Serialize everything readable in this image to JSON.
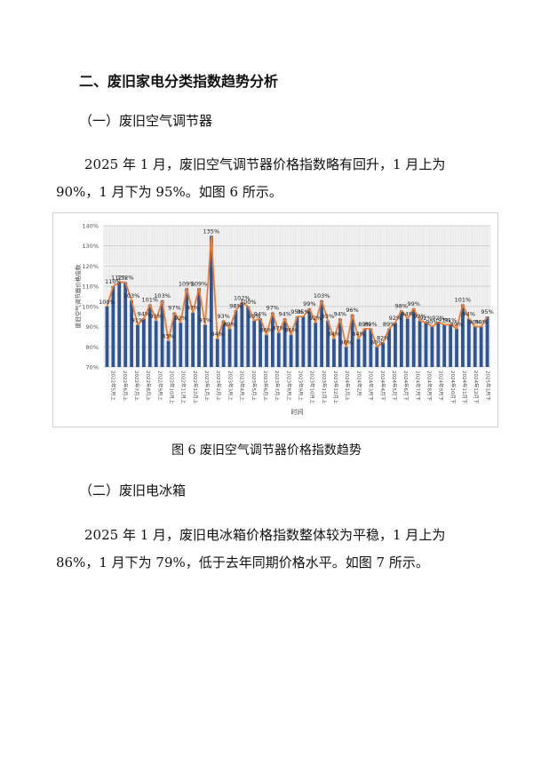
{
  "section_title": "二、废旧家电分类指数趋势分析",
  "subsection1_title": "（一）废旧空气调节器",
  "paragraph1": {
    "line1": "2025 年 1 月，废旧空气调节器价格指数略有回升，1 月上为",
    "line2": "90%，1 月下为 95%。如图 6 所示。"
  },
  "figure_caption": "图 6  废旧空气调节器价格指数趋势",
  "subsection2_title": "（二）废旧电冰箱",
  "paragraph2": {
    "line1": "2025 年 1 月，废旧电冰箱价格指数整体较为平稳，1 月上为",
    "line2": "86%，1 月下为 79%，低于去年同期价格水平。如图 7 所示。"
  },
  "chart_data": {
    "type": "bar",
    "ylabel": "废旧空气调节器价格指数",
    "xlabel": "时间",
    "ylim": [
      70,
      140
    ],
    "yticks": [
      "70%",
      "80%",
      "90%",
      "100%",
      "110%",
      "120%",
      "130%",
      "140%"
    ],
    "grid": true,
    "bar_color": "#2f5597",
    "line_color": "#ed7d31",
    "values": [
      100,
      110,
      112,
      112,
      103,
      91,
      94,
      101,
      93,
      103,
      83,
      97,
      92,
      109,
      97,
      109,
      91,
      135,
      84,
      93,
      89,
      98,
      102,
      100,
      93,
      94,
      86,
      97,
      87,
      94,
      86,
      95,
      95,
      99,
      92,
      103,
      93,
      84,
      94,
      80,
      96,
      84,
      89,
      89,
      80,
      82,
      89,
      92,
      98,
      94,
      99,
      93,
      92,
      90,
      92,
      91,
      91,
      89,
      101,
      94,
      90,
      90,
      95
    ],
    "labels": [
      "100%",
      "110%",
      "112%",
      "112%",
      "103%",
      "91%",
      "94%",
      "101%",
      "93%",
      "103%",
      "83%",
      "97%",
      "92%",
      "109%",
      "97%",
      "109%",
      "91%",
      "135%",
      "84%",
      "93%",
      "89%",
      "98%",
      "102%",
      "100%",
      "93%",
      "94%",
      "86%",
      "97%",
      "87%",
      "94%",
      "86%",
      "95%",
      "95%",
      "99%",
      "92%",
      "103%",
      "93%",
      "84%",
      "94%",
      "80%",
      "96%",
      "84%",
      "89%",
      "89%",
      "80%",
      "82%",
      "89%",
      "92%",
      "98%",
      "94%",
      "99%",
      "93%",
      "92%",
      "90%",
      "92%",
      "91%",
      "91%",
      "89%",
      "101%",
      "94%",
      "90%",
      "90%",
      "95%"
    ],
    "categories": [
      "2022年5月上",
      "2022年6月上",
      "2022年7月上",
      "2022年8月上",
      "2022年9月上",
      "2022年10月上",
      "2022年11月上",
      "2022年12月上",
      "2023年1月上",
      "2023年2月上",
      "2023年3月上",
      "2023年4月上",
      "2023年5月上",
      "2023年6月上",
      "2023年7月上",
      "2023年8月上",
      "2023年9月上",
      "2023年10月上",
      "2023年11月上",
      "2023年12月上",
      "2024年1月上",
      "2024年2月",
      "2024年3月下",
      "2024年4月下",
      "2024年5月下",
      "2024年6月下",
      "2024年7月下",
      "2024年8月下",
      "2024年9月下",
      "2024年10月下",
      "2024年11月下",
      "2024年12月下",
      "2025年1月下"
    ]
  }
}
